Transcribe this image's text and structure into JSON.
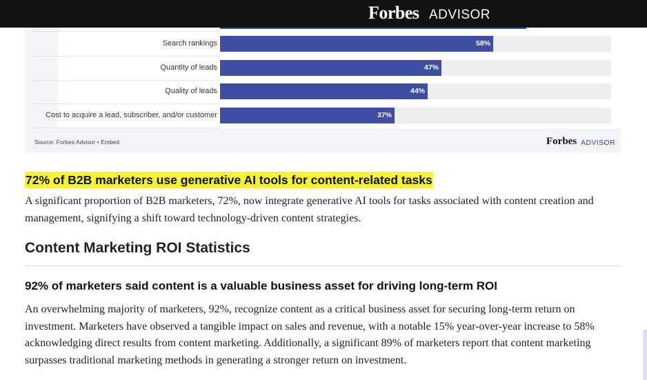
{
  "brand": {
    "name": "Forbes",
    "sub": "ADVISOR"
  },
  "chart_data": {
    "type": "bar",
    "orientation": "horizontal",
    "categories": [
      "Search rankings",
      "Quantity of leads",
      "Quality of leads",
      "Cost to acquire a lead, subscriber, and/or customer"
    ],
    "values": [
      58,
      47,
      44,
      37
    ],
    "value_labels": [
      "58%",
      "47%",
      "44%",
      "37%"
    ],
    "xlim": [
      0,
      83
    ],
    "bar_color": "#3e4fa3",
    "track_color": "#eeeeee",
    "source_label": "Source: ",
    "source_link": "Forbes Advisor",
    "source_sep": " • ",
    "embed_label": "Embed"
  },
  "card_logo": {
    "name": "Forbes",
    "sub": "ADVISOR"
  },
  "article": {
    "highlight_heading": "72% of B2B marketers use generative AI tools for content-related tasks",
    "para1": "A significant proportion of B2B marketers, 72%, now integrate generative AI tools for tasks associated with content creation and management, signifying a shift toward technology-driven content strategies.",
    "section_heading": "Content Marketing ROI Statistics",
    "subheading": "92% of marketers said content is a valuable business asset for driving long-term ROI",
    "para2": "An overwhelming majority of marketers, 92%, recognize content as a critical business asset for securing long-term return on investment. Marketers have observed a tangible impact on sales and revenue, with a notable 15% year-over-year increase to 58% acknowledging direct results from content marketing. Additionally, a significant 89% of marketers report that content marketing surpasses traditional marketing methods in generating a stronger return on investment."
  }
}
